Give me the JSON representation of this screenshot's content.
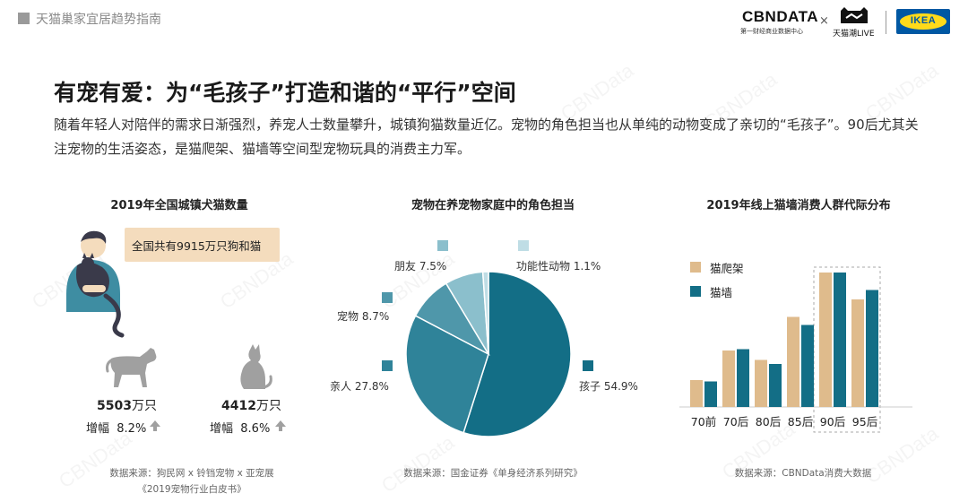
{
  "header": {
    "report_title": "天猫巢家宜居趋势指南"
  },
  "logos": {
    "cbn_text": "CBNDATA",
    "cbn_sub": "第一财经商业数据中心",
    "times": "×",
    "tmall_text": "天猫潮LIVE",
    "ikea_text": "IKEA"
  },
  "watermark": "CBNData",
  "page_title": "有宠有爱：为“毛孩子”打造和谐的“平行”空间",
  "description": "随着年轻人对陪伴的需求日渐强烈，养宠人士数量攀升，城镇狗猫数量近亿。宠物的角色担当也从单纯的动物变成了亲切的“毛孩子”。90后尤其关注宠物的生活姿态，是猫爬架、猫墙等空间型宠物玩具的消费主力军。",
  "colors": {
    "teal_dark": "#136e86",
    "teal_mid": "#3e8da2",
    "teal_light": "#8bbfcc",
    "teal_pale": "#bfdde5",
    "tan": "#dfbb8c",
    "grey_icon": "#a0a0a0",
    "skin": "#f4dcbd"
  },
  "panel1": {
    "title": "2019年全国城镇犬猫数量",
    "bubble": "全国共有9915万只狗和猫",
    "dog": {
      "count_num": "5503",
      "count_unit": "万只",
      "growth_label": "增幅",
      "growth_value": "8.2%",
      "icon": "dog-icon"
    },
    "cat": {
      "count_num": "4412",
      "count_unit": "万只",
      "growth_label": "增幅",
      "growth_value": "8.6%",
      "icon": "cat-icon"
    },
    "source_line1": "数据来源：狗民网 x 铃铛宠物 x 亚宠展",
    "source_line2": "《2019宠物行业白皮书》"
  },
  "panel2": {
    "title": "宠物在养宠物家庭中的角色担当",
    "source": "数据来源：国金证券《单身经济系列研究》"
  },
  "panel3": {
    "title": "2019年线上猫墙消费人群代际分布",
    "source": "数据来源：CBNData消费大数据"
  },
  "chart_data": [
    {
      "type": "pie",
      "title": "宠物在养宠物家庭中的角色担当",
      "slices": [
        {
          "label": "孩子",
          "value": 54.9,
          "value_text": "54.9%",
          "color": "#136e86"
        },
        {
          "label": "亲人",
          "value": 27.8,
          "value_text": "27.8%",
          "color": "#2f8399"
        },
        {
          "label": "宠物",
          "value": 8.7,
          "value_text": "8.7%",
          "color": "#4f97aa"
        },
        {
          "label": "朋友",
          "value": 7.5,
          "value_text": "7.5%",
          "color": "#8bbfcc"
        },
        {
          "label": "功能性动物",
          "value": 1.1,
          "value_text": "1.1%",
          "color": "#bfdde5"
        }
      ]
    },
    {
      "type": "bar",
      "title": "2019年线上猫墙消费人群代际分布",
      "categories": [
        "70前",
        "70后",
        "80后",
        "85后",
        "90后",
        "95后"
      ],
      "series": [
        {
          "name": "猫爬架",
          "color": "#dfbb8c",
          "values": [
            20,
            42,
            35,
            67,
            100,
            80
          ]
        },
        {
          "name": "猫墙",
          "color": "#136e86",
          "values": [
            19,
            43,
            32,
            61,
            100,
            87
          ]
        }
      ],
      "ylim": [
        0,
        100
      ],
      "highlight": [
        "90后",
        "95后"
      ],
      "legend": "top-left",
      "grid": false
    }
  ]
}
